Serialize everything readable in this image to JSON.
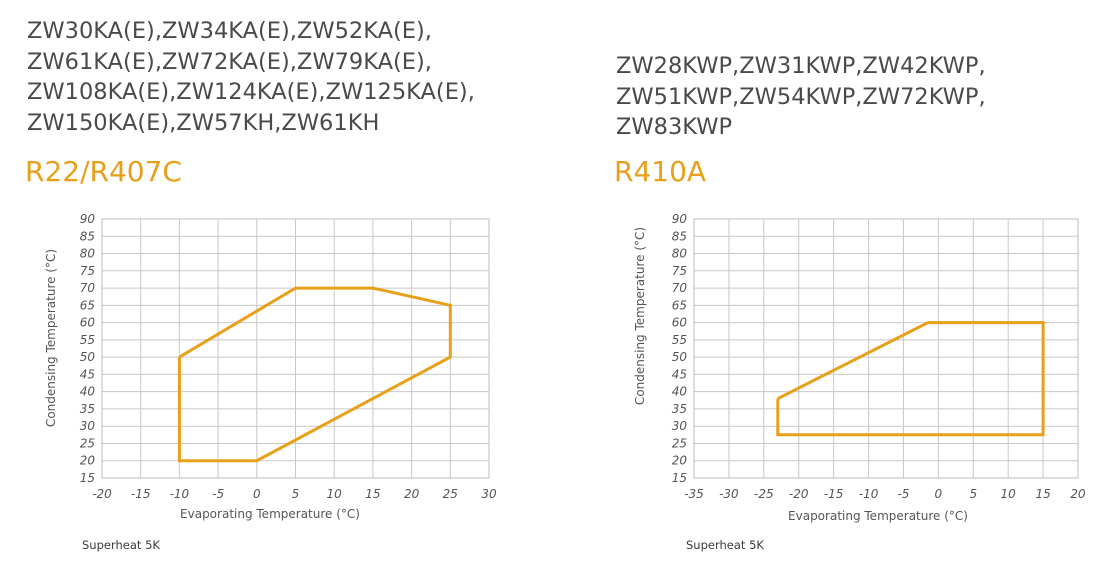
{
  "accent_color": "#E89F1A",
  "charts": [
    {
      "models": [
        "ZW30KA(E),ZW34KA(E),ZW52KA(E),",
        "ZW61KA(E),ZW72KA(E),ZW79KA(E),",
        "ZW108KA(E),ZW124KA(E),ZW125KA(E),",
        "ZW150KA(E),ZW57KH,ZW61KH"
      ],
      "refrigerant": "R22/R407C",
      "note": "Superheat 5K"
    },
    {
      "models": [
        "ZW28KWP,ZW31KWP,ZW42KWP,",
        "ZW51KWP,ZW54KWP,ZW72KWP,",
        "ZW83KWP"
      ],
      "refrigerant": "R410A",
      "note": "Superheat 5K"
    }
  ],
  "chart_data": [
    {
      "type": "area",
      "title": "R22/R407C",
      "xlabel": "Evaporating Temperature (°C)",
      "ylabel": "Condensing Temperature (°C)",
      "xlim": [
        -20,
        30
      ],
      "ylim": [
        15,
        90
      ],
      "xticks": [
        "-20",
        "-15",
        "-10",
        "-5",
        "0",
        "5",
        "10",
        "15",
        "20",
        "25",
        "30"
      ],
      "yticks": [
        "15",
        "20",
        "25",
        "30",
        "35",
        "40",
        "45",
        "50",
        "55",
        "60",
        "65",
        "70",
        "75",
        "80",
        "85",
        "90"
      ],
      "grid": true,
      "series": [
        {
          "x": [
            -10,
            5,
            15,
            25,
            25,
            0,
            -10,
            -10
          ],
          "y": [
            50,
            70,
            70,
            65,
            50,
            20,
            20,
            50
          ]
        }
      ]
    },
    {
      "type": "area",
      "title": "R410A",
      "xlabel": "Evaporating Temperature (°C)",
      "ylabel": "Condensing Temperature (°C)",
      "xlim": [
        -35,
        20
      ],
      "ylim": [
        15,
        90
      ],
      "xticks": [
        "-35",
        "-30",
        "-25",
        "-20",
        "-15",
        "-10",
        "-5",
        "0",
        "5",
        "10",
        "15",
        "20"
      ],
      "yticks": [
        "15",
        "20",
        "25",
        "30",
        "35",
        "40",
        "45",
        "50",
        "55",
        "60",
        "65",
        "70",
        "75",
        "80",
        "85",
        "90"
      ],
      "grid": true,
      "series": [
        {
          "x": [
            -23,
            -1.5,
            15,
            15,
            -23,
            -23
          ],
          "y": [
            38,
            60,
            60,
            27.5,
            27.5,
            38
          ]
        }
      ]
    }
  ]
}
